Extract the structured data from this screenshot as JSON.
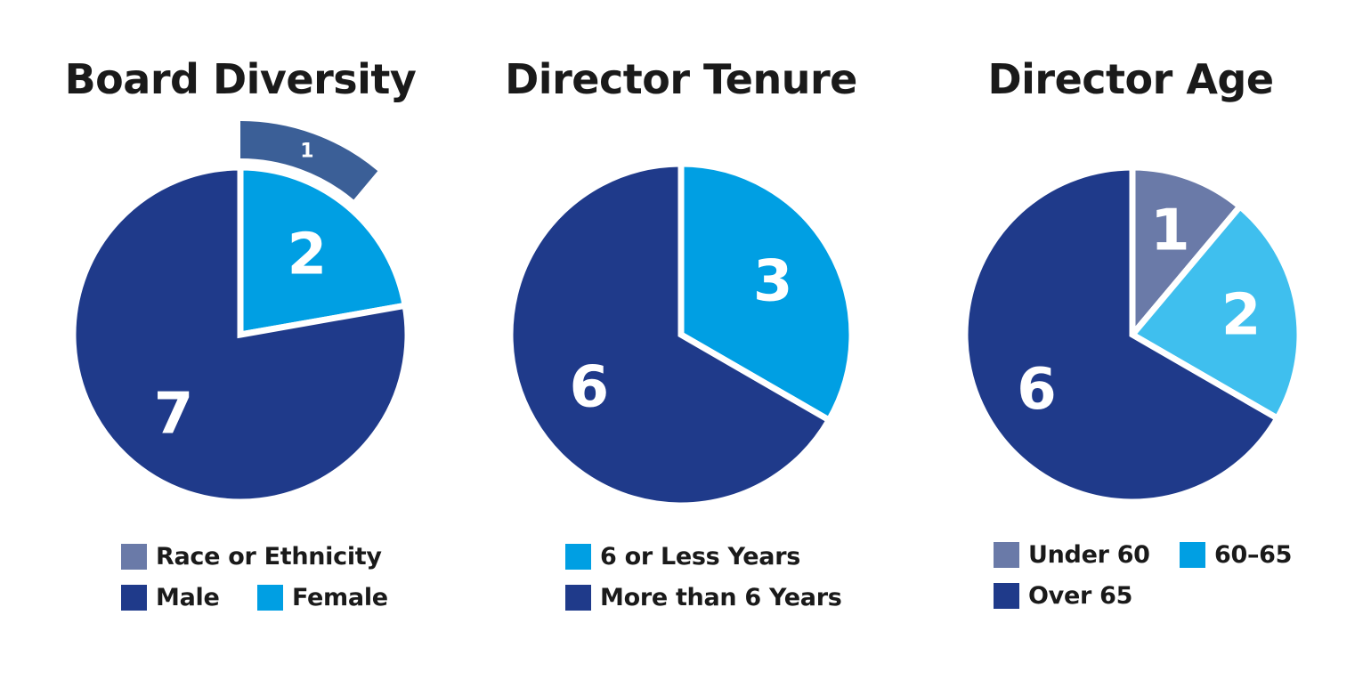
{
  "chart_data": [
    {
      "type": "pie",
      "title": "Board Diversity",
      "slices": [
        {
          "label": "Female",
          "value": 2,
          "color": "#009fe3"
        },
        {
          "label": "Male",
          "value": 7,
          "color": "#1f3a8a"
        }
      ],
      "callout": {
        "label": "Race or Ethnicity",
        "value": 1,
        "color": "#3b5f97",
        "of_slice": "Female"
      },
      "legend": [
        {
          "label": "Race or Ethnicity",
          "color": "#6a7aa8"
        },
        {
          "label": "Male",
          "color": "#1f3a8a"
        },
        {
          "label": "Female",
          "color": "#009fe3"
        }
      ]
    },
    {
      "type": "pie",
      "title": "Director Tenure",
      "slices": [
        {
          "label": "6 or Less Years",
          "value": 3,
          "color": "#009fe3"
        },
        {
          "label": "More than 6 Years",
          "value": 6,
          "color": "#1f3a8a"
        }
      ],
      "legend": [
        {
          "label": "6 or Less Years",
          "color": "#009fe3"
        },
        {
          "label": "More than 6 Years",
          "color": "#1f3a8a"
        }
      ]
    },
    {
      "type": "pie",
      "title": "Director Age",
      "slices": [
        {
          "label": "Under 60",
          "value": 1,
          "color": "#6a7aa8"
        },
        {
          "label": "60–65",
          "value": 2,
          "color": "#3fbfee"
        },
        {
          "label": "Over 65",
          "value": 6,
          "color": "#1f3a8a"
        }
      ],
      "legend": [
        {
          "label": "Under 60",
          "color": "#6a7aa8"
        },
        {
          "label": "60–65",
          "color": "#009fe3"
        },
        {
          "label": "Over 65",
          "color": "#1f3a8a"
        }
      ]
    }
  ]
}
